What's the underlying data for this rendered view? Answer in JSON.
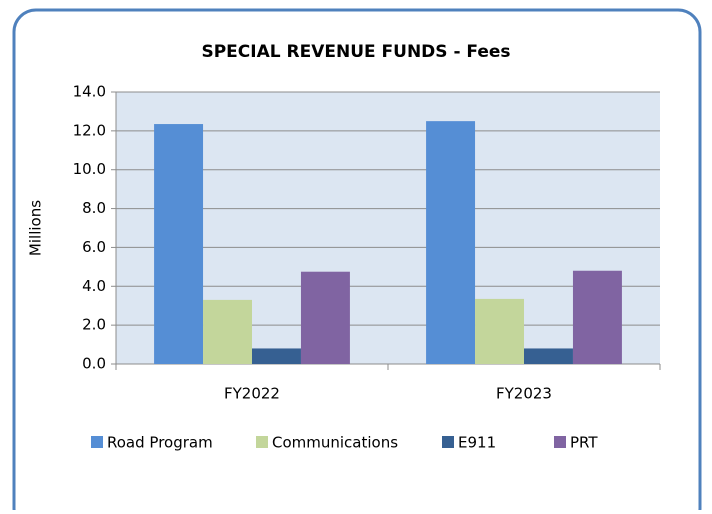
{
  "chart_data": {
    "type": "bar",
    "title": "SPECIAL REVENUE FUNDS - Fees",
    "y_label": "Millions",
    "categories": [
      "FY2022",
      "FY2023"
    ],
    "series": [
      {
        "name": "Road Program",
        "color": "#558ed5",
        "values": [
          12.35,
          12.5
        ]
      },
      {
        "name": "Communications",
        "color": "#c3d69b",
        "values": [
          3.3,
          3.35
        ]
      },
      {
        "name": "E911",
        "color": "#366092",
        "values": [
          0.8,
          0.8
        ]
      },
      {
        "name": "PRT",
        "color": "#8064a2",
        "values": [
          4.75,
          4.8
        ]
      }
    ],
    "ylim": [
      0,
      14
    ],
    "yticks": [
      {
        "value": 0,
        "label": "0.0"
      },
      {
        "value": 2,
        "label": "2.0"
      },
      {
        "value": 4,
        "label": "4.0"
      },
      {
        "value": 6,
        "label": "6.0"
      },
      {
        "value": 8,
        "label": "8.0"
      },
      {
        "value": 10,
        "label": "10.0"
      },
      {
        "value": 12,
        "label": "12.0"
      },
      {
        "value": 14,
        "label": "14.0"
      }
    ],
    "grid": true,
    "legend": "bottom"
  }
}
